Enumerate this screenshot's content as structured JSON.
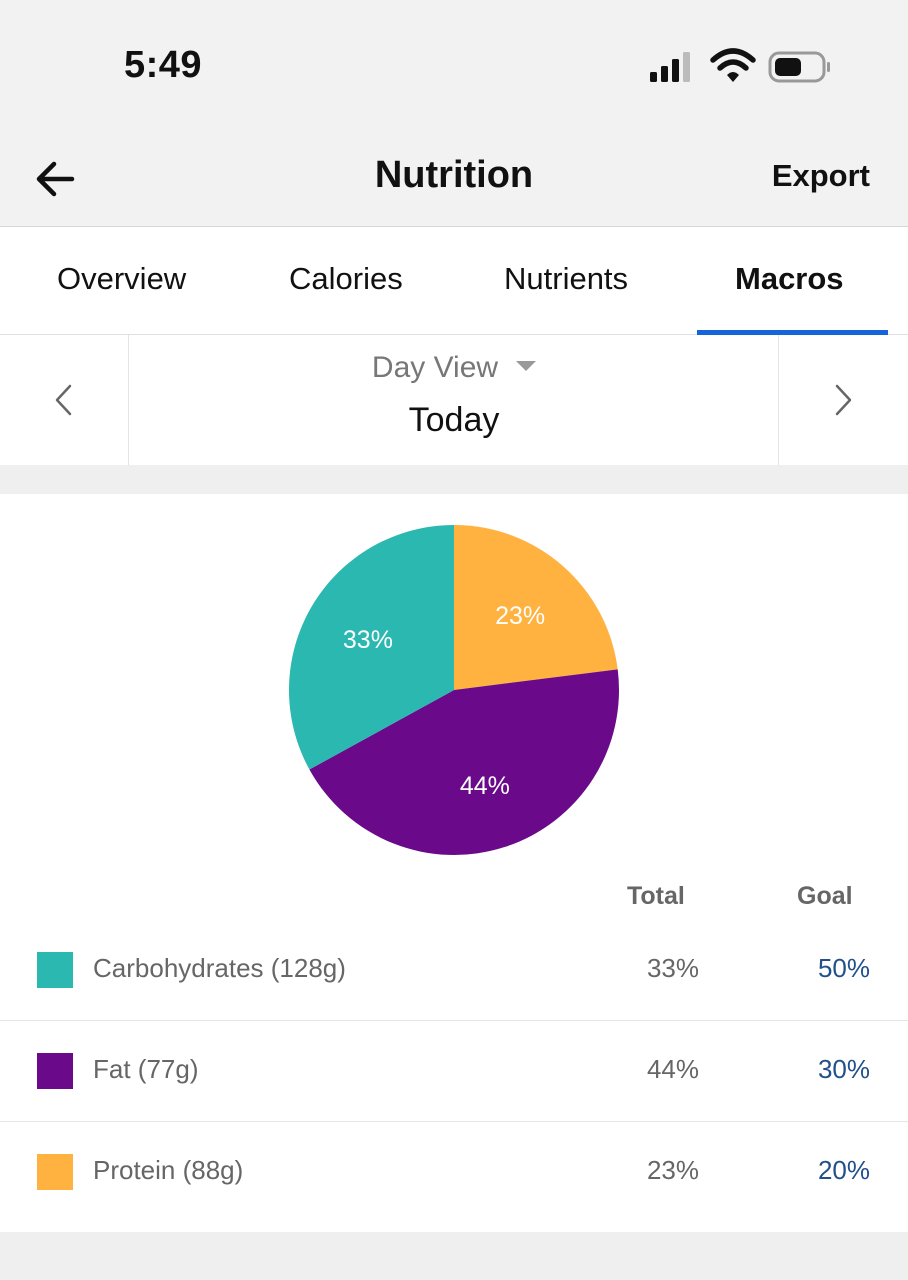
{
  "status_bar": {
    "time": "5:49",
    "signal_icon": "cellular-signal-icon",
    "wifi_icon": "wifi-icon",
    "battery_icon": "battery-icon"
  },
  "header": {
    "back_icon": "arrow-left-icon",
    "title": "Nutrition",
    "export_label": "Export"
  },
  "tabs": [
    {
      "label": "Overview",
      "active": false
    },
    {
      "label": "Calories",
      "active": false
    },
    {
      "label": "Nutrients",
      "active": false
    },
    {
      "label": "Macros",
      "active": true
    }
  ],
  "date_nav": {
    "view_label": "Day View",
    "value": "Today",
    "prev_icon": "chevron-left-icon",
    "next_icon": "chevron-right-icon"
  },
  "colors": {
    "accent": "#1565d8",
    "carbohydrates": "#2bb8b0",
    "fat": "#6a0a8a",
    "protein": "#ffb23f",
    "goal_text": "#22508a"
  },
  "chart_data": {
    "type": "pie",
    "slices": [
      {
        "label": "Protein",
        "value": 23,
        "display": "23%",
        "color": "#ffb23f"
      },
      {
        "label": "Fat",
        "value": 44,
        "display": "44%",
        "color": "#6a0a8a"
      },
      {
        "label": "Carbohydrates",
        "value": 33,
        "display": "33%",
        "color": "#2bb8b0"
      }
    ]
  },
  "macro_table": {
    "headers": {
      "total": "Total",
      "goal": "Goal"
    },
    "rows": [
      {
        "label": "Carbohydrates (128g)",
        "total": "33%",
        "goal": "50%",
        "color": "#2bb8b0"
      },
      {
        "label": "Fat (77g)",
        "total": "44%",
        "goal": "30%",
        "color": "#6a0a8a"
      },
      {
        "label": "Protein (88g)",
        "total": "23%",
        "goal": "20%",
        "color": "#ffb23f"
      }
    ]
  }
}
